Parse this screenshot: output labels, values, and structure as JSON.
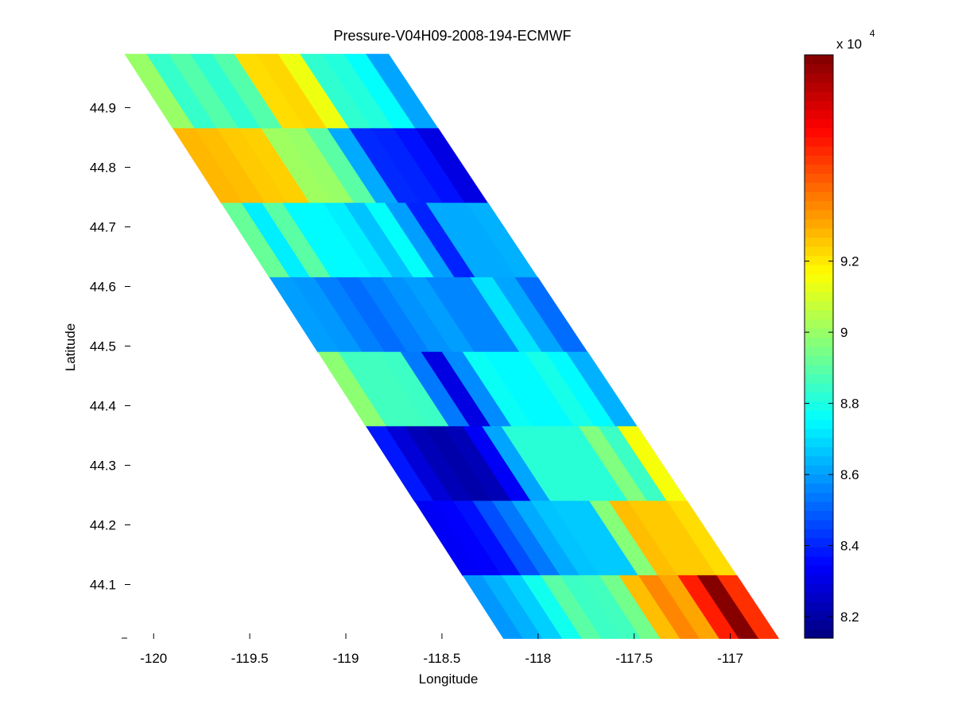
{
  "chart_data": {
    "type": "heatmap",
    "title": "Pressure-V04H09-2008-194-ECMWF",
    "xlabel": "Longitude",
    "ylabel": "Latitude",
    "xlim": [
      -120.15,
      -116.75
    ],
    "ylim": [
      44.01,
      44.99
    ],
    "xticks": [
      -120,
      -119.5,
      -119,
      -118.5,
      -118,
      -117.5,
      -117
    ],
    "xtick_labels": [
      "-120",
      "-119.5",
      "-119",
      "-118.5",
      "-118",
      "-117.5",
      "-117"
    ],
    "yticks": [
      44.1,
      44.2,
      44.3,
      44.4,
      44.5,
      44.6,
      44.7,
      44.8,
      44.9
    ],
    "ytick_labels": [
      "44.1",
      "44.2",
      "44.3",
      "44.4",
      "44.5",
      "44.6",
      "44.7",
      "44.8",
      "44.9"
    ],
    "colorbar": {
      "colormap": "jet",
      "range": [
        81400,
        97800
      ],
      "multiplier_label": "x 10",
      "multiplier_exponent": "4",
      "ticks": [
        8.2,
        8.4,
        8.6,
        8.8,
        9,
        9.2
      ],
      "tick_labels": [
        "8.2",
        "8.4",
        "8.6",
        "8.8",
        "9",
        "9.2"
      ]
    },
    "swath": {
      "lon_left_top": -120.15,
      "lon_right_top": -118.78,
      "lon_left_bottom": -118.18,
      "lon_right_bottom": -116.75
    },
    "lat_bands": [
      [
        44.865,
        44.99
      ],
      [
        44.74,
        44.865
      ],
      [
        44.615,
        44.74
      ],
      [
        44.49,
        44.615
      ],
      [
        44.365,
        44.49
      ],
      [
        44.24,
        44.365
      ],
      [
        44.115,
        44.24
      ],
      [
        44.01,
        44.115
      ]
    ],
    "pressure_pa": [
      [
        90000,
        88400,
        88900,
        88300,
        88900,
        92200,
        92300,
        91400,
        88300,
        88100,
        87600,
        86100
      ],
      [
        92800,
        92700,
        92500,
        92400,
        90100,
        90000,
        89000,
        86200,
        84100,
        84000,
        83700,
        83000
      ],
      [
        89200,
        87300,
        89000,
        87500,
        87500,
        87300,
        86600,
        87600,
        86000,
        84000,
        86200,
        86200,
        86300
      ],
      [
        86000,
        85900,
        85500,
        85200,
        85500,
        85800,
        86000,
        85600,
        85600,
        87100,
        86100,
        85200
      ],
      [
        89800,
        88600,
        88600,
        88500,
        85400,
        83000,
        85700,
        87700,
        87500,
        87500,
        87900,
        87500,
        86300
      ],
      [
        83800,
        82800,
        82300,
        82100,
        82300,
        83300,
        86100,
        88200,
        88200,
        88200,
        88200,
        89600,
        88500,
        91500
      ],
      [
        83300,
        83400,
        83700,
        84700,
        85400,
        86200,
        86600,
        86700,
        86700,
        89700,
        92700,
        92500,
        92500,
        92200
      ],
      [
        85900,
        86300,
        86800,
        87800,
        89000,
        88500,
        88600,
        89400,
        92700,
        93600,
        93100,
        95300,
        97700,
        95000
      ]
    ]
  }
}
